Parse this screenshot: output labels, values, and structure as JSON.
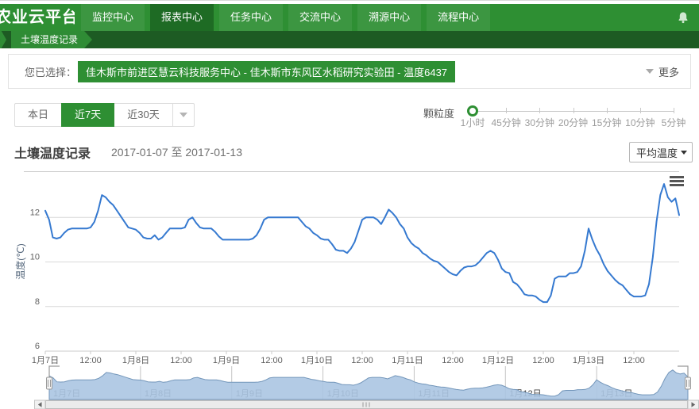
{
  "navbar": {
    "brand": "农业云平台",
    "items": [
      "监控中心",
      "报表中心",
      "任务中心",
      "交流中心",
      "溯源中心",
      "流程中心"
    ],
    "active_index": 1
  },
  "icons": {
    "bell": "bell-icon",
    "more_caret": "caret-down",
    "export_menu": "hamburger-menu"
  },
  "breadcrumb": {
    "current": "土壤温度记录"
  },
  "selection": {
    "label": "您已选择：",
    "value": "佳木斯市前进区慧云科技服务中心 - 佳木斯市东风区水稻研究实验田 - 温度6437",
    "more_label": "更多"
  },
  "range_tabs": {
    "items": [
      "本日",
      "近7天",
      "近30天"
    ],
    "active": "近7天"
  },
  "granularity": {
    "label": "颗粒度",
    "options": [
      "1小时",
      "45分钟",
      "30分钟",
      "20分钟",
      "15分钟",
      "10分钟",
      "5分钟"
    ],
    "selected": "1小时"
  },
  "report": {
    "title": "土壤温度记录",
    "date_range": "2017-01-07 至 2017-01-13",
    "metric_select": "平均温度"
  },
  "colors": {
    "accent_green": "#2e8f33",
    "line_blue": "#3579d0",
    "navigator_fill": "#abc5e2",
    "gridline": "#d9d9d9"
  },
  "chart_data": {
    "type": "line",
    "title": "土壤温度记录",
    "subtitle": "2017-01-07 至 2017-01-13",
    "ylabel": "温度(℃)",
    "ylim": [
      6,
      14
    ],
    "y_ticks": [
      6,
      8,
      10,
      12
    ],
    "x_ticks": [
      "1月7日",
      "12:00",
      "1月8日",
      "12:00",
      "1月9日",
      "12:00",
      "1月10日",
      "12:00",
      "1月11日",
      "12:00",
      "1月12日",
      "12:00",
      "1月13日",
      "12:00"
    ],
    "navigator_days": [
      "1月7日",
      "1月8日",
      "1月9日",
      "1月10日",
      "1月11日",
      "1月12日",
      "1月13日"
    ],
    "grid": "horizontal-only",
    "legend": "none",
    "series": [
      {
        "name": "平均温度",
        "unit": "℃",
        "interval": "1小时",
        "color": "#3579d0",
        "values": [
          12.3,
          11.9,
          11.1,
          11.05,
          11.1,
          11.3,
          11.45,
          11.5,
          11.5,
          11.5,
          11.5,
          11.5,
          11.55,
          11.8,
          12.3,
          13.0,
          12.9,
          12.7,
          12.55,
          12.3,
          12.05,
          11.8,
          11.55,
          11.5,
          11.45,
          11.3,
          11.1,
          11.05,
          11.05,
          11.2,
          11.0,
          11.1,
          11.3,
          11.5,
          11.5,
          11.5,
          11.5,
          11.55,
          11.9,
          12.0,
          11.75,
          11.55,
          11.5,
          11.5,
          11.5,
          11.35,
          11.15,
          11.0,
          11.0,
          11.0,
          11.0,
          11.0,
          11.0,
          11.0,
          11.0,
          11.05,
          11.2,
          11.5,
          11.9,
          12.0,
          12.0,
          12.0,
          12.0,
          12.0,
          12.0,
          12.0,
          12.0,
          12.0,
          11.8,
          11.6,
          11.5,
          11.3,
          11.2,
          11.05,
          11.0,
          11.0,
          10.8,
          10.55,
          10.5,
          10.5,
          10.4,
          10.6,
          10.9,
          11.4,
          11.9,
          12.0,
          12.0,
          12.0,
          11.9,
          11.7,
          12.0,
          12.35,
          12.2,
          12.0,
          11.7,
          11.5,
          11.1,
          10.85,
          10.7,
          10.6,
          10.4,
          10.3,
          10.15,
          10.05,
          10.0,
          9.85,
          9.7,
          9.55,
          9.45,
          9.4,
          9.6,
          9.75,
          9.8,
          9.8,
          9.85,
          10.0,
          10.2,
          10.4,
          10.5,
          10.4,
          10.1,
          9.7,
          9.55,
          9.5,
          9.1,
          9.0,
          8.8,
          8.55,
          8.5,
          8.5,
          8.45,
          8.3,
          8.2,
          8.2,
          8.5,
          9.25,
          9.35,
          9.35,
          9.35,
          9.5,
          9.5,
          9.55,
          9.8,
          10.5,
          11.5,
          11.0,
          10.6,
          10.3,
          9.9,
          9.6,
          9.4,
          9.2,
          9.05,
          8.95,
          8.75,
          8.55,
          8.45,
          8.45,
          8.45,
          8.5,
          9.0,
          10.2,
          11.8,
          13.0,
          13.5,
          12.9,
          12.7,
          12.85,
          12.1
        ]
      }
    ]
  }
}
